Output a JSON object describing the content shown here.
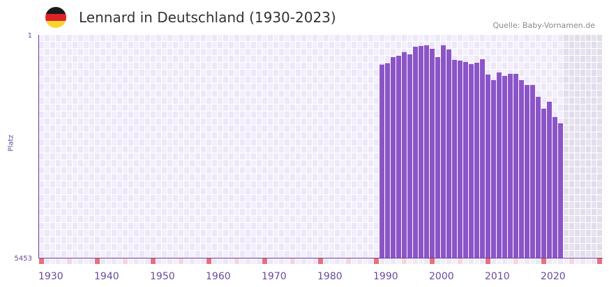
{
  "header": {
    "title": "Lennard in Deutschland (1930-2023)",
    "source": "Quelle: Baby-Vornamen.de",
    "flag_colors": [
      "#1a1a1a",
      "#dd2228",
      "#fcd22f"
    ]
  },
  "chart_data": {
    "type": "bar",
    "title": "Lennard in Deutschland (1930-2023)",
    "xlabel": "",
    "ylabel": "Platz",
    "ylim": [
      5453,
      1
    ],
    "y_ticks": [
      "1",
      "5453"
    ],
    "x_range": [
      1930,
      2030
    ],
    "x_ticks": [
      1930,
      1940,
      1950,
      1960,
      1970,
      1980,
      1990,
      2000,
      2010,
      2020
    ],
    "future_shaded_from": 2024,
    "bar_color": "#8b55c8",
    "x": [
      1991,
      1992,
      1993,
      1994,
      1995,
      1996,
      1997,
      1998,
      1999,
      2000,
      2001,
      2002,
      2003,
      2004,
      2005,
      2006,
      2007,
      2008,
      2009,
      2010,
      2011,
      2012,
      2013,
      2014,
      2015,
      2016,
      2017,
      2018,
      2019,
      2020,
      2021,
      2022,
      2023
    ],
    "values": [
      729,
      694,
      546,
      512,
      422,
      478,
      291,
      274,
      257,
      342,
      546,
      257,
      359,
      614,
      631,
      665,
      717,
      682,
      597,
      972,
      1109,
      921,
      1006,
      955,
      955,
      1109,
      1228,
      1228,
      1518,
      1807,
      1637,
      2012,
      2165
    ]
  }
}
